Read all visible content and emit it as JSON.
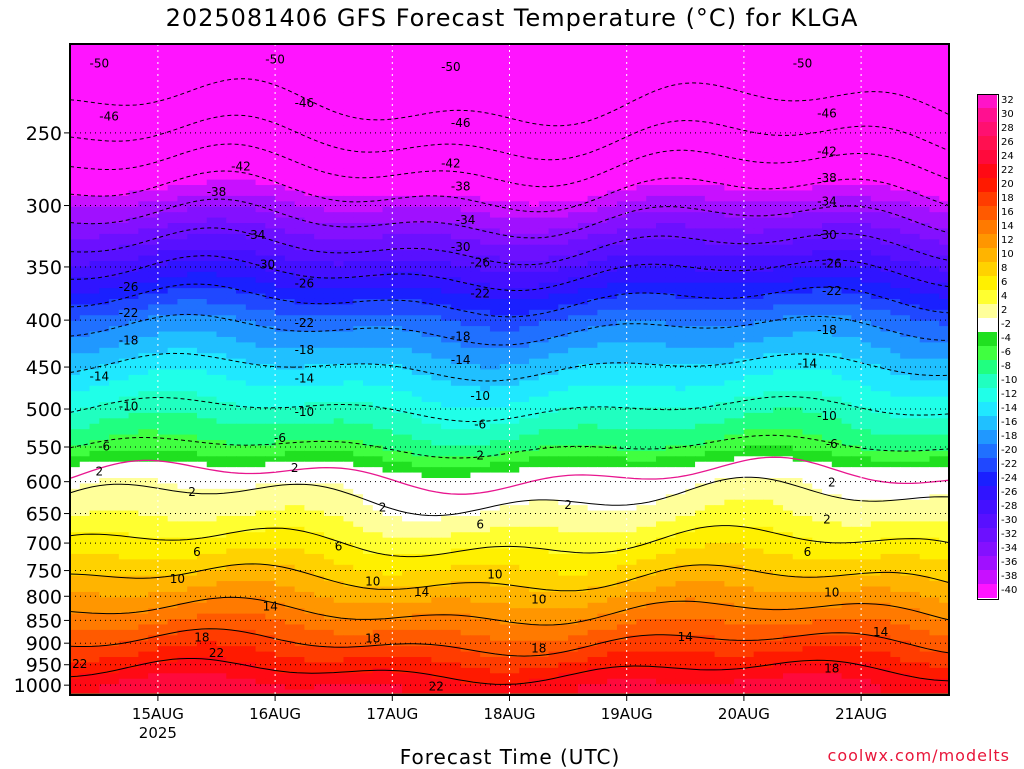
{
  "title": "2025081406 GFS Forecast Temperature (°C) for KLGA",
  "xlabel": "Forecast Time (UTC)",
  "credit": "coolwx.com/modelts",
  "colors": {
    "ground": "#a0522d",
    "freezing_line": "#e8168f",
    "contour_line": "#000000"
  },
  "chart_data": {
    "type": "heatmap",
    "title": "2025081406 GFS Forecast Temperature (°C) for KLGA",
    "xlabel": "Forecast Time (UTC)",
    "ylabel": "",
    "x_ticks": [
      "15AUG",
      "16AUG",
      "17AUG",
      "18AUG",
      "19AUG",
      "20AUG",
      "21AUG"
    ],
    "x_year_label": "2025",
    "x_range_hours": [
      0,
      180
    ],
    "y_ticks_hpa": [
      250,
      300,
      350,
      400,
      450,
      500,
      550,
      600,
      650,
      700,
      750,
      800,
      850,
      900,
      950,
      1000
    ],
    "y_range_hpa": [
      200,
      1025
    ],
    "y_scale": "log-pressure",
    "grid": true,
    "legend_placement": "right",
    "legend_labels": [
      32,
      30,
      28,
      26,
      24,
      22,
      20,
      18,
      16,
      14,
      12,
      10,
      8,
      6,
      4,
      2,
      -2,
      -4,
      -6,
      -8,
      -10,
      -12,
      -14,
      -16,
      -18,
      -20,
      -22,
      -24,
      -26,
      -28,
      -30,
      -32,
      -34,
      -36,
      -38,
      -40
    ],
    "legend_colors": [
      "#ff14c8",
      "#ff1090",
      "#ff1070",
      "#ff1050",
      "#ff0a3c",
      "#ff0a14",
      "#ff1a00",
      "#ff3c00",
      "#ff5a00",
      "#ff7a00",
      "#ff9600",
      "#ffb400",
      "#ffd200",
      "#fff000",
      "#ffff30",
      "#ffff9a",
      "#ffffff",
      "#20e020",
      "#40ff40",
      "#20ff80",
      "#20ffc0",
      "#20ffe8",
      "#20e8ff",
      "#20c0ff",
      "#2098ff",
      "#2070ff",
      "#2048ff",
      "#1a20ff",
      "#3014ff",
      "#4410ff",
      "#5810ff",
      "#6c10ff",
      "#8410ff",
      "#a010ff",
      "#c810ff",
      "#ff14ff"
    ],
    "temperature_profile": [
      {
        "p": 200,
        "t": -56
      },
      {
        "p": 250,
        "t": -47
      },
      {
        "p": 300,
        "t": -36
      },
      {
        "p": 350,
        "t": -27
      },
      {
        "p": 400,
        "t": -19
      },
      {
        "p": 450,
        "t": -14
      },
      {
        "p": 500,
        "t": -10
      },
      {
        "p": 550,
        "t": -6
      },
      {
        "p": 600,
        "t": 1
      },
      {
        "p": 650,
        "t": 3
      },
      {
        "p": 700,
        "t": 6
      },
      {
        "p": 750,
        "t": 9
      },
      {
        "p": 800,
        "t": 12
      },
      {
        "p": 850,
        "t": 15
      },
      {
        "p": 900,
        "t": 18
      },
      {
        "p": 950,
        "t": 21
      },
      {
        "p": 1000,
        "t": 24
      }
    ],
    "contour_labels": [
      {
        "text": "-50",
        "hour": 6,
        "p": 210
      },
      {
        "text": "-50",
        "hour": 42,
        "p": 208
      },
      {
        "text": "-50",
        "hour": 78,
        "p": 212
      },
      {
        "text": "-50",
        "hour": 150,
        "p": 210
      },
      {
        "text": "-46",
        "hour": 8,
        "p": 240
      },
      {
        "text": "-46",
        "hour": 48,
        "p": 232
      },
      {
        "text": "-46",
        "hour": 80,
        "p": 244
      },
      {
        "text": "-46",
        "hour": 155,
        "p": 238
      },
      {
        "text": "-42",
        "hour": 35,
        "p": 272
      },
      {
        "text": "-42",
        "hour": 78,
        "p": 270
      },
      {
        "text": "-42",
        "hour": 155,
        "p": 262
      },
      {
        "text": "-38",
        "hour": 30,
        "p": 290
      },
      {
        "text": "-38",
        "hour": 80,
        "p": 286
      },
      {
        "text": "-38",
        "hour": 155,
        "p": 280
      },
      {
        "text": "-34",
        "hour": 38,
        "p": 323
      },
      {
        "text": "-34",
        "hour": 81,
        "p": 311
      },
      {
        "text": "-34",
        "hour": 155,
        "p": 297
      },
      {
        "text": "-30",
        "hour": 40,
        "p": 348
      },
      {
        "text": "-30",
        "hour": 80,
        "p": 333
      },
      {
        "text": "-30",
        "hour": 155,
        "p": 323
      },
      {
        "text": "-26",
        "hour": 12,
        "p": 368
      },
      {
        "text": "-26",
        "hour": 48,
        "p": 365
      },
      {
        "text": "-26",
        "hour": 84,
        "p": 346
      },
      {
        "text": "-26",
        "hour": 156,
        "p": 347
      },
      {
        "text": "-22",
        "hour": 12,
        "p": 393
      },
      {
        "text": "-22",
        "hour": 48,
        "p": 403
      },
      {
        "text": "-22",
        "hour": 84,
        "p": 374
      },
      {
        "text": "-22",
        "hour": 156,
        "p": 372
      },
      {
        "text": "-18",
        "hour": 12,
        "p": 421
      },
      {
        "text": "-18",
        "hour": 48,
        "p": 431
      },
      {
        "text": "-18",
        "hour": 80,
        "p": 417
      },
      {
        "text": "-18",
        "hour": 155,
        "p": 410
      },
      {
        "text": "-14",
        "hour": 6,
        "p": 461
      },
      {
        "text": "-14",
        "hour": 48,
        "p": 463
      },
      {
        "text": "-14",
        "hour": 80,
        "p": 442
      },
      {
        "text": "-14",
        "hour": 151,
        "p": 446
      },
      {
        "text": "-10",
        "hour": 12,
        "p": 497
      },
      {
        "text": "-10",
        "hour": 48,
        "p": 504
      },
      {
        "text": "-10",
        "hour": 84,
        "p": 484
      },
      {
        "text": "-10",
        "hour": 155,
        "p": 509
      },
      {
        "text": "-6",
        "hour": 7,
        "p": 549
      },
      {
        "text": "-6",
        "hour": 43,
        "p": 538
      },
      {
        "text": "-6",
        "hour": 84,
        "p": 520
      },
      {
        "text": "-6",
        "hour": 156,
        "p": 546
      },
      {
        "text": "2",
        "hour": 6,
        "p": 585
      },
      {
        "text": "2",
        "hour": 46,
        "p": 580
      },
      {
        "text": "2",
        "hour": 84,
        "p": 562
      },
      {
        "text": "2",
        "hour": 156,
        "p": 601
      },
      {
        "text": "2",
        "hour": 25,
        "p": 616
      },
      {
        "text": "2",
        "hour": 64,
        "p": 640
      },
      {
        "text": "2",
        "hour": 102,
        "p": 636
      },
      {
        "text": "2",
        "hour": 155,
        "p": 660
      },
      {
        "text": "6",
        "hour": 26,
        "p": 716
      },
      {
        "text": "6",
        "hour": 55,
        "p": 706
      },
      {
        "text": "6",
        "hour": 84,
        "p": 668
      },
      {
        "text": "6",
        "hour": 151,
        "p": 716
      },
      {
        "text": "10",
        "hour": 22,
        "p": 766
      },
      {
        "text": "10",
        "hour": 62,
        "p": 771
      },
      {
        "text": "10",
        "hour": 87,
        "p": 757
      },
      {
        "text": "10",
        "hour": 96,
        "p": 807
      },
      {
        "text": "10",
        "hour": 156,
        "p": 792
      },
      {
        "text": "14",
        "hour": 41,
        "p": 821
      },
      {
        "text": "14",
        "hour": 72,
        "p": 791
      },
      {
        "text": "14",
        "hour": 126,
        "p": 886
      },
      {
        "text": "14",
        "hour": 166,
        "p": 875
      },
      {
        "text": "18",
        "hour": 27,
        "p": 887
      },
      {
        "text": "18",
        "hour": 62,
        "p": 889
      },
      {
        "text": "18",
        "hour": 96,
        "p": 912
      },
      {
        "text": "18",
        "hour": 156,
        "p": 959
      },
      {
        "text": "22",
        "hour": 2,
        "p": 948
      },
      {
        "text": "22",
        "hour": 30,
        "p": 922
      },
      {
        "text": "22",
        "hour": 75,
        "p": 1003
      }
    ]
  }
}
